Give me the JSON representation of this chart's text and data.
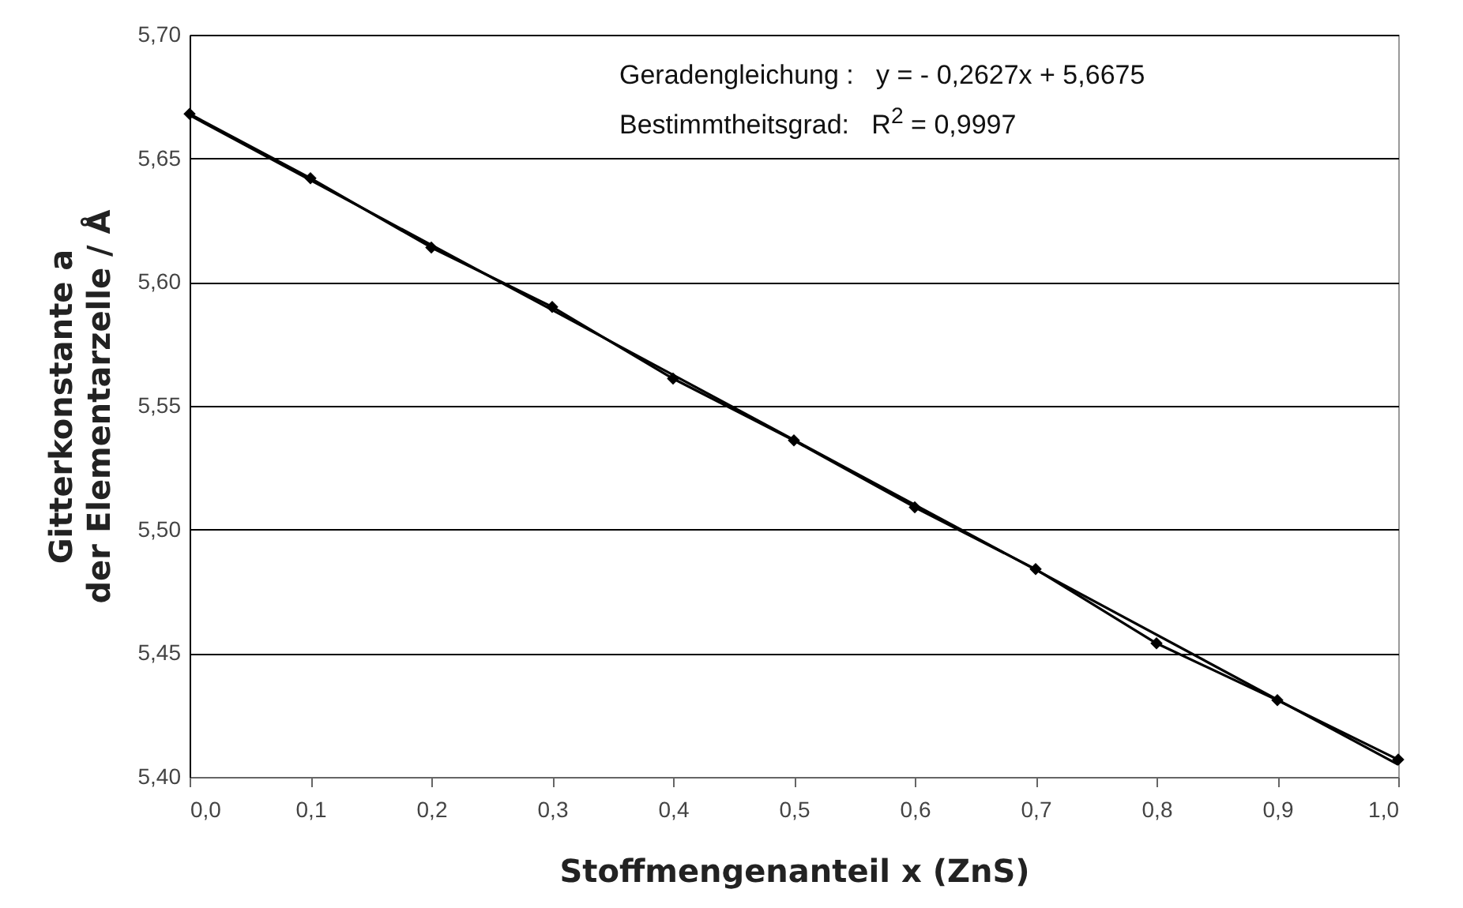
{
  "chart_data": {
    "type": "line",
    "xlabel": "Stoffmengenanteil  x (ZnS)",
    "ylabel": "Gitterkonstante a\nder Elementarzelle / Å",
    "annotations": [
      "Geradengleichung :   y = - 0,2627x + 5,6675",
      "Bestimmtheitsgrad:   R$^{2}$ = 0,9997"
    ],
    "xlim": [
      0,
      1
    ],
    "xticks": [
      {
        "value": 0,
        "label": "0,0"
      },
      {
        "value": 0.1,
        "label": "0,1"
      },
      {
        "value": 0.2,
        "label": "0,2"
      },
      {
        "value": 0.3,
        "label": "0,3"
      },
      {
        "value": 0.4,
        "label": "0,4"
      },
      {
        "value": 0.5,
        "label": "0,5"
      },
      {
        "value": 0.6,
        "label": "0,6"
      },
      {
        "value": 0.7,
        "label": "0,7"
      },
      {
        "value": 0.8,
        "label": "0,8"
      },
      {
        "value": 0.9,
        "label": "0,9"
      },
      {
        "value": 1,
        "label": "1,0"
      }
    ],
    "ylim": [
      5.4,
      5.7
    ],
    "yticks": [
      {
        "value": 5.4,
        "label": "5,40"
      },
      {
        "value": 5.45,
        "label": "5,45"
      },
      {
        "value": 5.5,
        "label": "5,50"
      },
      {
        "value": 5.55,
        "label": "5,55"
      },
      {
        "value": 5.6,
        "label": "5,60"
      },
      {
        "value": 5.65,
        "label": "5,65"
      },
      {
        "value": 5.7,
        "label": "5,70"
      }
    ],
    "grid": "y",
    "series": [
      {
        "marker": "diamond",
        "color": "#000000",
        "x": [
          0,
          0.1,
          0.2,
          0.3,
          0.4,
          0.5,
          0.6,
          0.7,
          0.8,
          0.9,
          1
        ],
        "values": [
          5.668,
          5.642,
          5.614,
          5.59,
          5.561,
          5.536,
          5.509,
          5.484,
          5.454,
          5.431,
          5.407
        ]
      },
      {
        "color": "#000000",
        "x": [
          0,
          1
        ],
        "values": [
          5.6675,
          5.405
        ]
      }
    ]
  }
}
